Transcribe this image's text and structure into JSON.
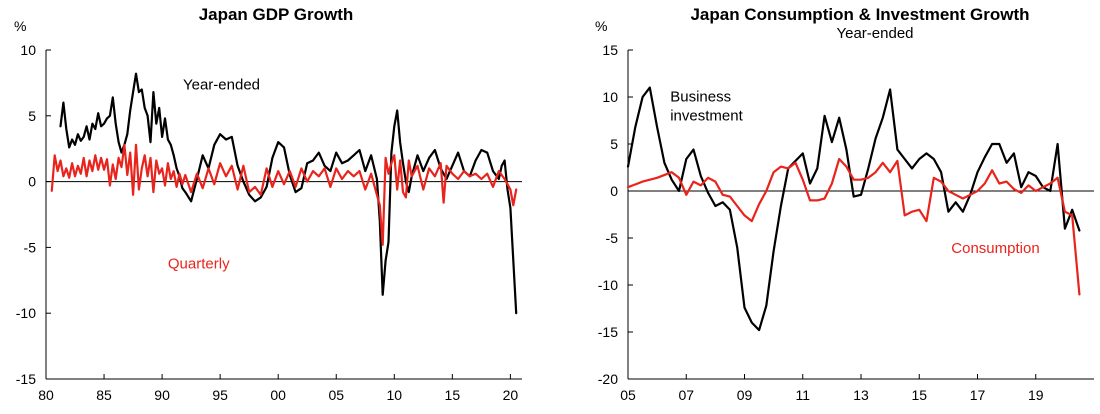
{
  "chart_data": [
    {
      "type": "line",
      "title": "Japan GDP Growth",
      "ylabel": "%",
      "xlabel": "",
      "ylim": [
        -15,
        10
      ],
      "yticks": [
        10,
        5,
        0,
        -5,
        -10,
        -15
      ],
      "xlim": [
        1980,
        2021
      ],
      "xticks": [
        {
          "x": 1980,
          "label": "80"
        },
        {
          "x": 1985,
          "label": "85"
        },
        {
          "x": 1990,
          "label": "90"
        },
        {
          "x": 1995,
          "label": "95"
        },
        {
          "x": 2000,
          "label": "00"
        },
        {
          "x": 2005,
          "label": "05"
        },
        {
          "x": 2010,
          "label": "10"
        },
        {
          "x": 2015,
          "label": "15"
        },
        {
          "x": 2020,
          "label": "20"
        }
      ],
      "grid": false,
      "zero_line": true,
      "series": [
        {
          "name": "Year-ended",
          "color": "#000000",
          "label_at": [
            1991.8,
            7.0
          ],
          "x": [
            1981.25,
            1981.5,
            1981.75,
            1982.0,
            1982.25,
            1982.5,
            1982.75,
            1983.0,
            1983.25,
            1983.5,
            1983.75,
            1984.0,
            1984.25,
            1984.5,
            1984.75,
            1985.0,
            1985.25,
            1985.5,
            1985.75,
            1986.0,
            1986.25,
            1986.5,
            1986.75,
            1987.0,
            1987.25,
            1987.5,
            1987.75,
            1988.0,
            1988.25,
            1988.5,
            1988.75,
            1989.0,
            1989.25,
            1989.5,
            1989.75,
            1990.0,
            1990.25,
            1990.5,
            1990.75,
            1991.0,
            1991.25,
            1991.5,
            1991.75,
            1992.0,
            1992.5,
            1993.0,
            1993.5,
            1994.0,
            1994.5,
            1995.0,
            1995.5,
            1996.0,
            1996.5,
            1997.0,
            1997.5,
            1998.0,
            1998.5,
            1999.0,
            1999.5,
            2000.0,
            2000.5,
            2001.0,
            2001.5,
            2002.0,
            2002.5,
            2003.0,
            2003.5,
            2004.0,
            2004.5,
            2005.0,
            2005.5,
            2006.0,
            2006.5,
            2007.0,
            2007.5,
            2008.0,
            2008.5,
            2008.75,
            2009.0,
            2009.25,
            2009.5,
            2009.75,
            2010.0,
            2010.25,
            2010.5,
            2010.75,
            2011.0,
            2011.25,
            2011.5,
            2012.0,
            2012.5,
            2013.0,
            2013.5,
            2014.0,
            2014.5,
            2015.0,
            2015.5,
            2016.0,
            2016.5,
            2017.0,
            2017.5,
            2018.0,
            2018.5,
            2019.0,
            2019.25,
            2019.5,
            2019.75,
            2020.0,
            2020.25,
            2020.5
          ],
          "y": [
            4.2,
            6.0,
            4.0,
            2.6,
            3.2,
            2.8,
            3.6,
            3.1,
            3.4,
            4.2,
            3.2,
            4.4,
            4.0,
            5.2,
            4.2,
            4.4,
            4.8,
            5.0,
            6.4,
            4.4,
            3.0,
            2.2,
            2.8,
            3.6,
            5.4,
            6.8,
            8.2,
            6.8,
            7.0,
            5.6,
            5.0,
            3.0,
            6.8,
            4.4,
            5.6,
            3.4,
            4.8,
            3.2,
            2.8,
            2.0,
            1.0,
            0.4,
            -0.5,
            -0.8,
            -1.5,
            0.2,
            2.0,
            1.0,
            2.8,
            3.6,
            3.2,
            3.4,
            1.2,
            0.0,
            -1.0,
            -1.5,
            -1.2,
            -0.4,
            1.8,
            3.0,
            2.6,
            0.5,
            -0.8,
            -0.5,
            1.4,
            1.6,
            2.2,
            1.2,
            0.8,
            2.2,
            1.4,
            1.6,
            2.0,
            2.4,
            0.8,
            2.0,
            0.2,
            -3.0,
            -8.6,
            -6.0,
            -4.6,
            2.2,
            4.2,
            5.4,
            3.0,
            1.4,
            0.0,
            -0.8,
            0.4,
            2.0,
            0.8,
            1.8,
            2.4,
            1.0,
            0.2,
            1.2,
            2.2,
            0.8,
            0.4,
            1.6,
            2.4,
            2.2,
            0.8,
            0.2,
            1.2,
            1.6,
            -0.6,
            -2.0,
            -6.0,
            -10.0
          ]
        },
        {
          "name": "Quarterly",
          "color": "#e8241d",
          "label_at": [
            1990.5,
            -6.6
          ],
          "x": [
            1980.5,
            1980.75,
            1981.0,
            1981.25,
            1981.5,
            1981.75,
            1982.0,
            1982.25,
            1982.5,
            1982.75,
            1983.0,
            1983.25,
            1983.5,
            1983.75,
            1984.0,
            1984.25,
            1984.5,
            1984.75,
            1985.0,
            1985.25,
            1985.5,
            1985.75,
            1986.0,
            1986.25,
            1986.5,
            1986.75,
            1987.0,
            1987.25,
            1987.5,
            1987.75,
            1988.0,
            1988.25,
            1988.5,
            1988.75,
            1989.0,
            1989.25,
            1989.5,
            1989.75,
            1990.0,
            1990.25,
            1990.5,
            1990.75,
            1991.0,
            1991.25,
            1991.5,
            1991.75,
            1992.0,
            1992.5,
            1993.0,
            1993.5,
            1994.0,
            1994.5,
            1995.0,
            1995.5,
            1996.0,
            1996.5,
            1997.0,
            1997.5,
            1998.0,
            1998.5,
            1999.0,
            1999.5,
            2000.0,
            2000.5,
            2001.0,
            2001.5,
            2002.0,
            2002.5,
            2003.0,
            2003.5,
            2004.0,
            2004.5,
            2005.0,
            2005.5,
            2006.0,
            2006.5,
            2007.0,
            2007.5,
            2008.0,
            2008.5,
            2008.75,
            2009.0,
            2009.25,
            2009.5,
            2009.75,
            2010.0,
            2010.25,
            2010.5,
            2010.75,
            2011.0,
            2011.25,
            2011.5,
            2012.0,
            2012.5,
            2013.0,
            2013.5,
            2014.0,
            2014.25,
            2014.5,
            2015.0,
            2015.5,
            2016.0,
            2016.5,
            2017.0,
            2017.5,
            2018.0,
            2018.5,
            2019.0,
            2019.5,
            2019.75,
            2020.0,
            2020.25,
            2020.5
          ],
          "y": [
            -0.7,
            2.0,
            0.8,
            1.6,
            0.4,
            1.0,
            0.3,
            1.4,
            0.4,
            1.2,
            0.6,
            1.8,
            0.4,
            1.6,
            0.8,
            2.0,
            0.9,
            1.8,
            0.9,
            1.7,
            -0.3,
            1.3,
            0.2,
            1.8,
            1.1,
            2.8,
            0.5,
            2.2,
            -1.0,
            2.8,
            -0.6,
            1.0,
            2.0,
            0.4,
            1.8,
            -0.8,
            1.6,
            0.6,
            1.0,
            -0.3,
            1.4,
            0.2,
            0.8,
            -0.4,
            0.6,
            -0.2,
            0.5,
            -0.8,
            0.6,
            -0.5,
            1.0,
            -0.2,
            1.4,
            0.4,
            1.2,
            -0.6,
            1.2,
            -0.8,
            -0.4,
            -1.0,
            1.0,
            -0.4,
            0.8,
            -0.2,
            0.8,
            -0.4,
            1.0,
            0.0,
            0.8,
            0.4,
            1.0,
            -0.4,
            1.0,
            0.2,
            0.8,
            0.4,
            0.8,
            -0.6,
            0.6,
            -1.0,
            -1.8,
            -4.8,
            1.8,
            0.6,
            1.4,
            2.0,
            -0.6,
            1.6,
            -0.8,
            -1.2,
            1.6,
            0.4,
            1.2,
            -0.6,
            1.0,
            0.4,
            1.4,
            -1.6,
            1.2,
            0.6,
            0.2,
            0.8,
            0.4,
            0.6,
            0.2,
            0.6,
            -0.4,
            0.8,
            0.2,
            -0.2,
            -0.6,
            -1.8,
            -0.6
          ]
        }
      ]
    },
    {
      "type": "line",
      "title": "Japan Consumption  & Investment Growth",
      "subtitle": "Year-ended",
      "ylabel": "%",
      "xlabel": "",
      "ylim": [
        -20,
        15
      ],
      "yticks": [
        15,
        10,
        5,
        0,
        -5,
        -10,
        -15,
        -20
      ],
      "xlim": [
        2005,
        2021
      ],
      "xticks": [
        {
          "x": 2005,
          "label": "05"
        },
        {
          "x": 2007,
          "label": "07"
        },
        {
          "x": 2009,
          "label": "09"
        },
        {
          "x": 2011,
          "label": "11"
        },
        {
          "x": 2013,
          "label": "13"
        },
        {
          "x": 2015,
          "label": "15"
        },
        {
          "x": 2017,
          "label": "17"
        },
        {
          "x": 2019,
          "label": "19"
        }
      ],
      "grid": false,
      "zero_line": true,
      "series": [
        {
          "name": "Business\ninvestment",
          "color": "#000000",
          "label_at": [
            2006.45,
            9.5
          ],
          "x": [
            2005.0,
            2005.25,
            2005.5,
            2005.75,
            2006.0,
            2006.25,
            2006.5,
            2006.75,
            2007.0,
            2007.25,
            2007.5,
            2007.75,
            2008.0,
            2008.25,
            2008.5,
            2008.75,
            2009.0,
            2009.25,
            2009.5,
            2009.75,
            2010.0,
            2010.25,
            2010.5,
            2010.75,
            2011.0,
            2011.25,
            2011.5,
            2011.75,
            2012.0,
            2012.25,
            2012.5,
            2012.75,
            2013.0,
            2013.25,
            2013.5,
            2013.75,
            2014.0,
            2014.25,
            2014.5,
            2014.75,
            2015.0,
            2015.25,
            2015.5,
            2015.75,
            2016.0,
            2016.25,
            2016.5,
            2016.75,
            2017.0,
            2017.25,
            2017.5,
            2017.75,
            2018.0,
            2018.25,
            2018.5,
            2018.75,
            2019.0,
            2019.25,
            2019.5,
            2019.75,
            2020.0,
            2020.25,
            2020.5
          ],
          "y": [
            2.6,
            6.8,
            10.0,
            11.0,
            6.8,
            3.0,
            1.2,
            0.0,
            3.4,
            4.4,
            1.6,
            -0.2,
            -1.6,
            -1.2,
            -2.0,
            -6.0,
            -12.4,
            -14.0,
            -14.8,
            -12.2,
            -6.4,
            -1.6,
            2.4,
            3.2,
            4.0,
            0.8,
            2.4,
            8.0,
            5.2,
            7.8,
            4.4,
            -0.6,
            -0.4,
            2.4,
            5.6,
            7.8,
            10.8,
            4.4,
            3.4,
            2.4,
            3.4,
            4.0,
            3.4,
            2.0,
            -2.2,
            -1.2,
            -2.2,
            -0.4,
            2.0,
            3.6,
            5.0,
            5.0,
            3.0,
            4.0,
            0.4,
            2.0,
            1.6,
            0.4,
            0.0,
            5.0,
            -4.0,
            -2.0,
            -4.2
          ]
        },
        {
          "name": "Consumption",
          "color": "#e8241d",
          "label_at": [
            2016.1,
            -6.6
          ],
          "x": [
            2005.0,
            2005.5,
            2006.0,
            2006.5,
            2006.75,
            2007.0,
            2007.25,
            2007.5,
            2007.75,
            2008.0,
            2008.25,
            2008.5,
            2008.75,
            2009.0,
            2009.25,
            2009.5,
            2009.75,
            2010.0,
            2010.25,
            2010.5,
            2010.75,
            2011.0,
            2011.25,
            2011.5,
            2011.75,
            2012.0,
            2012.25,
            2012.5,
            2012.75,
            2013.0,
            2013.25,
            2013.5,
            2013.75,
            2014.0,
            2014.25,
            2014.5,
            2014.75,
            2015.0,
            2015.25,
            2015.5,
            2015.75,
            2016.0,
            2016.25,
            2016.5,
            2016.75,
            2017.0,
            2017.25,
            2017.5,
            2017.75,
            2018.0,
            2018.25,
            2018.5,
            2018.75,
            2019.0,
            2019.25,
            2019.5,
            2019.75,
            2020.0,
            2020.25,
            2020.5
          ],
          "y": [
            0.4,
            1.0,
            1.4,
            2.0,
            1.4,
            -0.4,
            1.0,
            0.6,
            1.4,
            1.0,
            -0.4,
            -0.6,
            -1.6,
            -2.6,
            -3.2,
            -1.4,
            0.0,
            2.0,
            2.6,
            2.4,
            3.0,
            1.2,
            -1.0,
            -1.0,
            -0.8,
            0.8,
            3.4,
            2.6,
            1.2,
            1.2,
            1.4,
            2.0,
            3.0,
            2.0,
            3.2,
            -2.6,
            -2.2,
            -2.0,
            -3.2,
            1.4,
            1.0,
            0.0,
            -0.4,
            -0.8,
            -0.4,
            0.0,
            0.8,
            2.2,
            0.8,
            1.0,
            0.2,
            -0.2,
            0.6,
            0.0,
            0.4,
            0.8,
            1.4,
            -2.2,
            -2.6,
            -11.0
          ]
        }
      ]
    }
  ]
}
